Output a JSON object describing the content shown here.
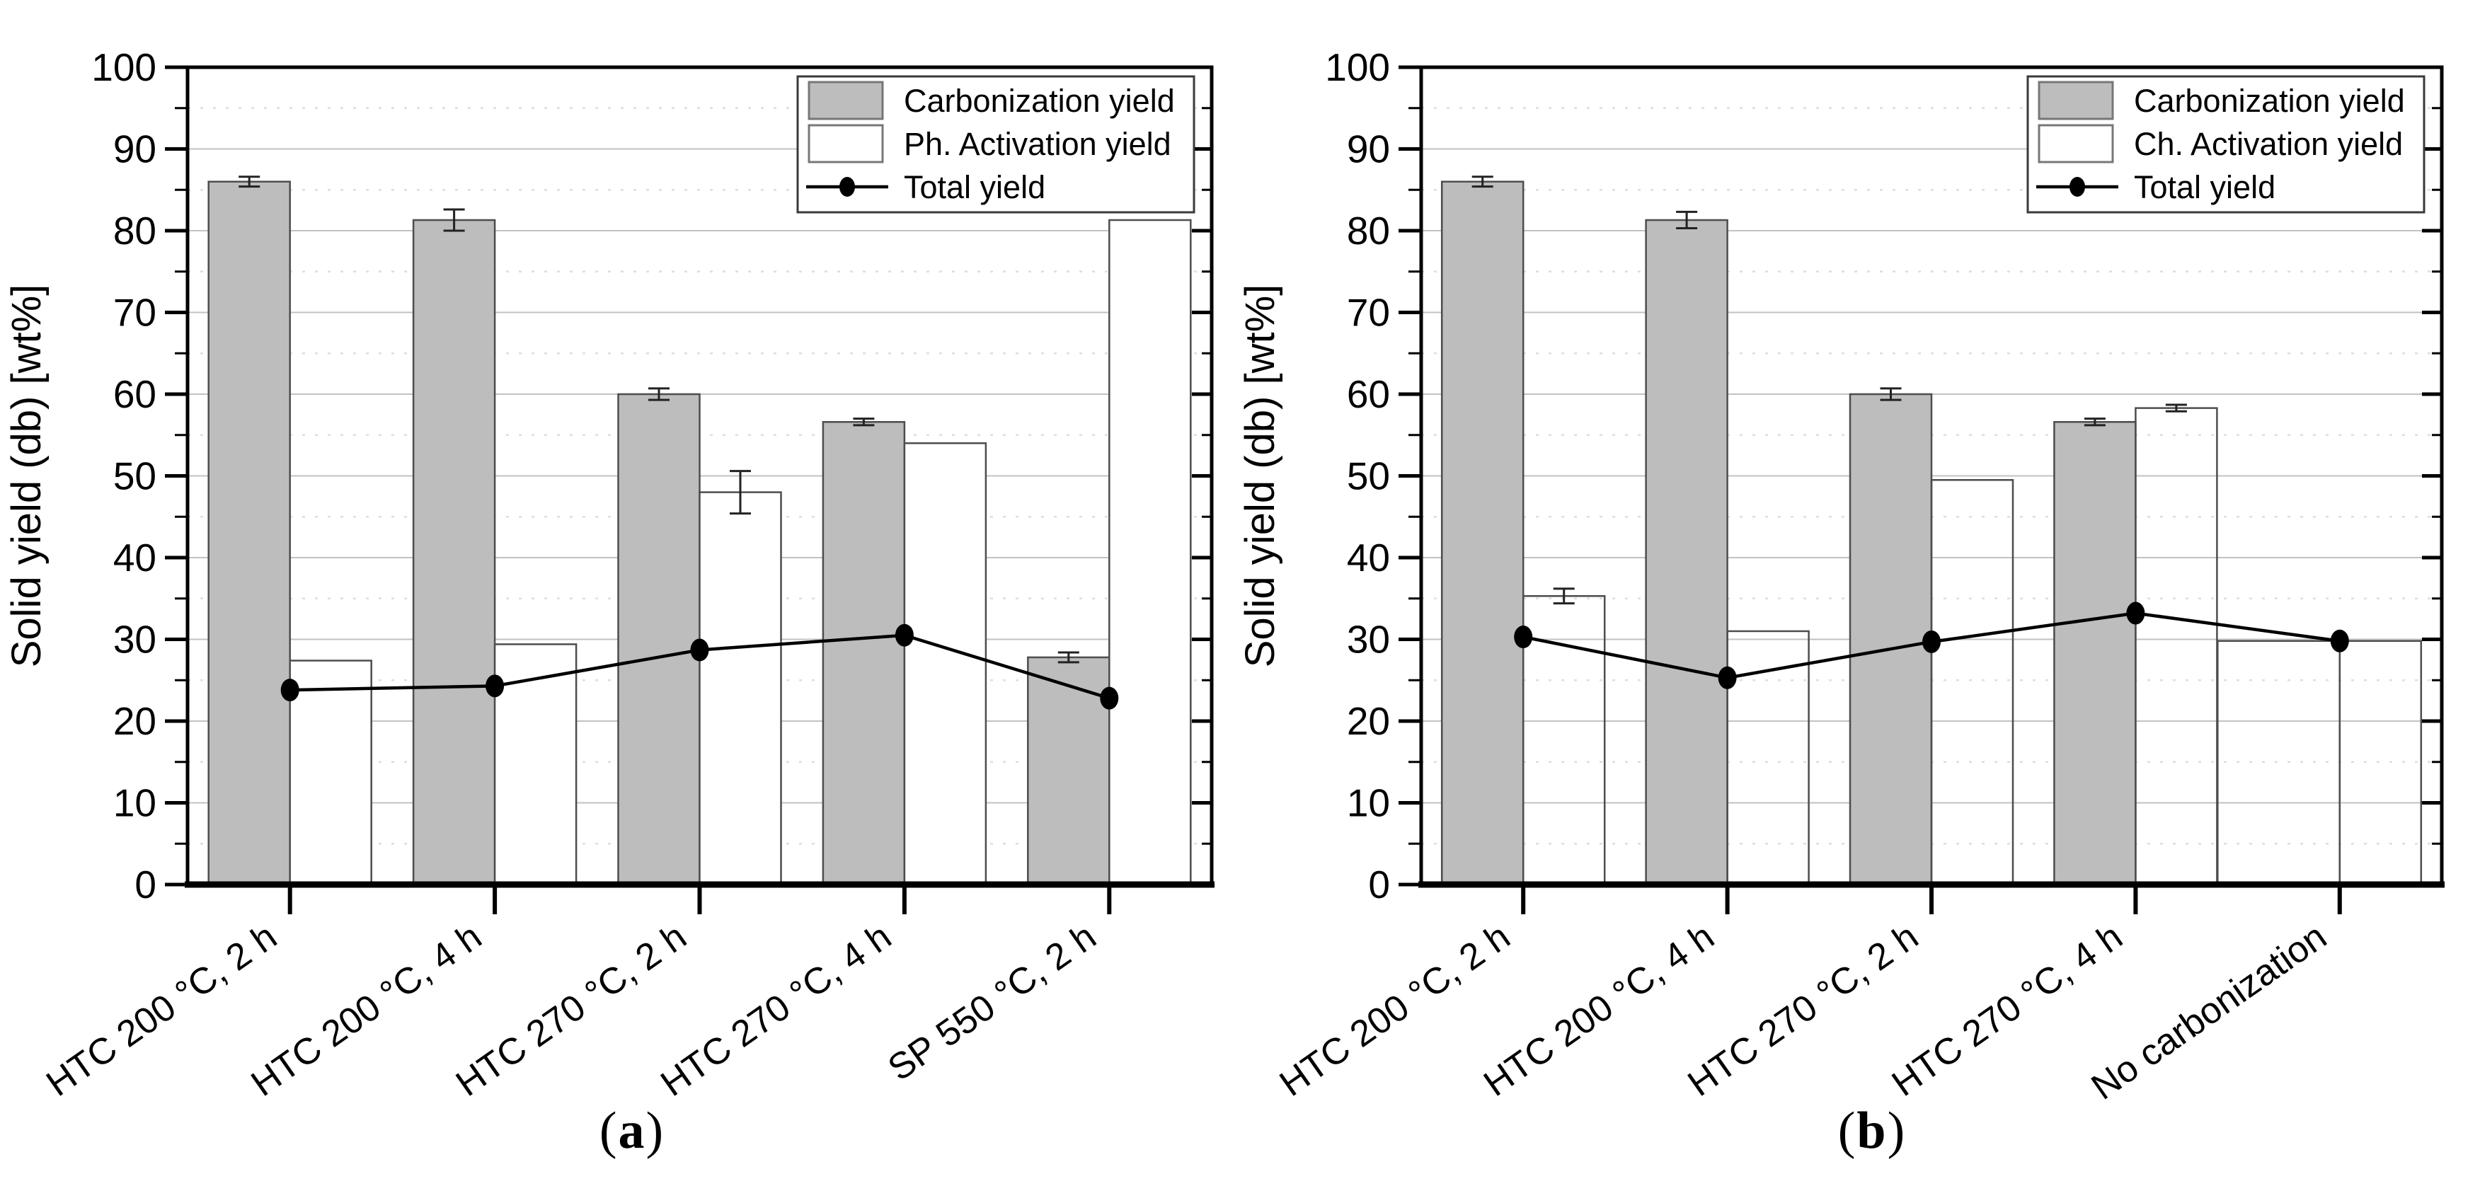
{
  "figure": {
    "y_axis_label": "Solid yield (db) [wt%]",
    "captions": {
      "open": "(",
      "panel_a": "a",
      "panel_b": "b",
      "close": ")"
    }
  },
  "colors": {
    "background": "#ffffff",
    "bar_gray_fill": "#bdbdbd",
    "bar_stroke": "#4d4d4d",
    "bar_white_fill": "#ffffff",
    "grid_major": "#c2c2c2",
    "grid_minor": "#dedede",
    "axis_frame": "#000000",
    "error_bar": "#222222",
    "total_line": "#000000",
    "marker": "#000000",
    "legend_border": "#3a3a3a",
    "legend_background": "#ffffff",
    "text": "#000000"
  },
  "chart_data": [
    {
      "panel": "a",
      "type": "bar",
      "title": "",
      "xlabel": "",
      "ylabel": "Solid yield (db) [wt%]",
      "ylim": [
        0,
        100
      ],
      "y_major_step": 10,
      "y_minor_step": 5,
      "grid": "major-solid, minor-dotted",
      "legend_position": "top-right",
      "white_bars_opaque": true,
      "categories": [
        "HTC 200 °C, 2 h",
        "HTC 200 °C, 4 h",
        "HTC 270 °C, 2 h",
        "HTC 270 °C, 4 h",
        "SP 550 °C, 2 h"
      ],
      "series": [
        {
          "name": "Carbonization yield",
          "type": "bar",
          "style": "gray",
          "values": [
            86.0,
            81.3,
            60.0,
            56.6,
            27.8
          ],
          "errors": [
            0.6,
            1.3,
            0.7,
            0.4,
            0.6
          ]
        },
        {
          "name": "Ph. Activation yield",
          "type": "bar",
          "style": "white",
          "values": [
            27.4,
            29.4,
            48.0,
            54.0,
            81.3
          ],
          "errors": [
            0,
            0,
            2.6,
            0,
            0
          ]
        },
        {
          "name": "Total yield",
          "type": "line-marker",
          "values": [
            23.8,
            24.3,
            28.7,
            30.5,
            22.8
          ]
        }
      ]
    },
    {
      "panel": "b",
      "type": "bar",
      "title": "",
      "xlabel": "",
      "ylabel": "Solid yield (db) [wt%]",
      "ylim": [
        0,
        100
      ],
      "y_major_step": 10,
      "y_minor_step": 5,
      "grid": "major-solid, minor-dotted",
      "legend_position": "top-right",
      "white_bars_opaque": false,
      "categories": [
        "HTC 200 °C, 2 h",
        "HTC 200 °C, 4 h",
        "HTC 270 °C, 2 h",
        "HTC 270 °C, 4 h",
        "No carbonization"
      ],
      "series": [
        {
          "name": "Carbonization yield",
          "type": "bar",
          "style": "gray",
          "values": [
            86.0,
            81.3,
            60.0,
            56.6,
            null
          ],
          "errors": [
            0.6,
            1.0,
            0.7,
            0.4,
            null
          ]
        },
        {
          "name": "Ch. Activation yield",
          "type": "bar",
          "style": "white",
          "values": [
            35.3,
            31.0,
            49.5,
            58.3,
            29.8
          ],
          "errors": [
            0.9,
            0,
            0,
            0.4,
            0
          ]
        },
        {
          "name": "Total yield",
          "type": "line-marker",
          "values": [
            30.3,
            25.3,
            29.7,
            33.2,
            29.8
          ]
        }
      ]
    }
  ]
}
